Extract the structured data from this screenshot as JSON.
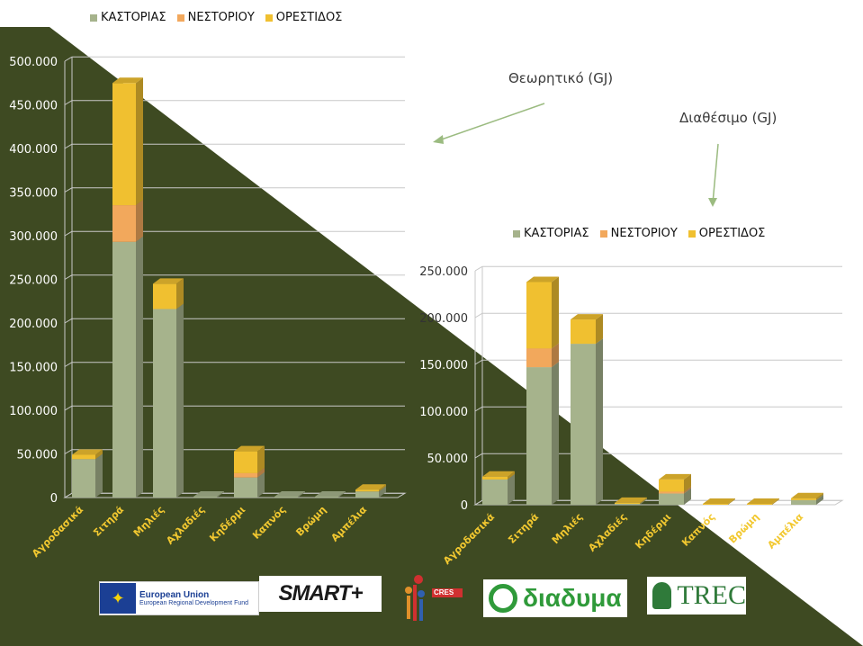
{
  "legend_top": {
    "items": [
      "ΚΑΣΤΟΡΙΑΣ",
      "ΝΕΣΤΟΡΙΟΥ",
      "ΟΡΕΣΤΙΔΟΣ"
    ]
  },
  "annotations": {
    "theoretical": "Θεωρητικό (GJ)",
    "available": "Διαθέσιμο (GJ)"
  },
  "colors": {
    "kastorias": "#a6b38c",
    "nestoriou": "#f2a85c",
    "orestidos": "#f0c030",
    "olive_bg": "#3e4a22",
    "light_bg": "#ffffff"
  },
  "chart_data": [
    {
      "type": "bar",
      "stacked": true,
      "title": "",
      "annotation": "Θεωρητικό (GJ)",
      "categories": [
        "Αγροδασικά",
        "Σιτηρά",
        "Μηλιές",
        "Αχλαδιές",
        "Κηδέρμι",
        "Καπνός",
        "Βρώμη",
        "Αμπέλια"
      ],
      "series": [
        {
          "name": "ΚΑΣΤΟΡΙΑΣ",
          "values": [
            44000,
            293000,
            216000,
            1000,
            23000,
            1000,
            1000,
            7000
          ]
        },
        {
          "name": "ΝΕΣΤΟΡΙΟΥ",
          "values": [
            0,
            42000,
            0,
            0,
            5000,
            0,
            0,
            0
          ]
        },
        {
          "name": "ΟΡΕΣΤΙΔΟΣ",
          "values": [
            5000,
            140000,
            29000,
            0,
            25000,
            0,
            0,
            2000
          ]
        }
      ],
      "yticks": [
        "0",
        "50.000",
        "100.000",
        "150.000",
        "200.000",
        "250.000",
        "300.000",
        "350.000",
        "400.000",
        "450.000",
        "500.000"
      ],
      "ylim": [
        0,
        500000
      ]
    },
    {
      "type": "bar",
      "stacked": true,
      "title": "",
      "annotation": "Διαθέσιμο (GJ)",
      "legend": [
        "ΚΑΣΤΟΡΙΑΣ",
        "ΝΕΣΤΟΡΙΟΥ",
        "ΟΡΕΣΤΙΔΟΣ"
      ],
      "categories": [
        "Αγροδασικά",
        "Σιτηρά",
        "Μηλιές",
        "Αχλαδιές",
        "Κηδέρμι",
        "Καπνός",
        "Βρώμη",
        "Αμπέλια"
      ],
      "series": [
        {
          "name": "ΚΑΣΤΟΡΙΑΣ",
          "values": [
            27000,
            147000,
            172000,
            1000,
            12000,
            0,
            0,
            5000
          ]
        },
        {
          "name": "ΝΕΣΤΟΡΙΟΥ",
          "values": [
            0,
            20000,
            0,
            0,
            2000,
            0,
            0,
            0
          ]
        },
        {
          "name": "ΟΡΕΣΤΙΔΟΣ",
          "values": [
            3000,
            71000,
            26000,
            1000,
            13000,
            1000,
            1000,
            2000
          ]
        }
      ],
      "yticks": [
        "0",
        "50.000",
        "100.000",
        "150.000",
        "200.000",
        "250.000"
      ],
      "ylim": [
        0,
        250000
      ]
    }
  ],
  "logos": {
    "eu_title": "European Union",
    "eu_subtitle": "European Regional Development Fund",
    "smart": "SMART+",
    "cres": "CRES",
    "diadyma": "διαδυμα",
    "trec": "TREC"
  }
}
